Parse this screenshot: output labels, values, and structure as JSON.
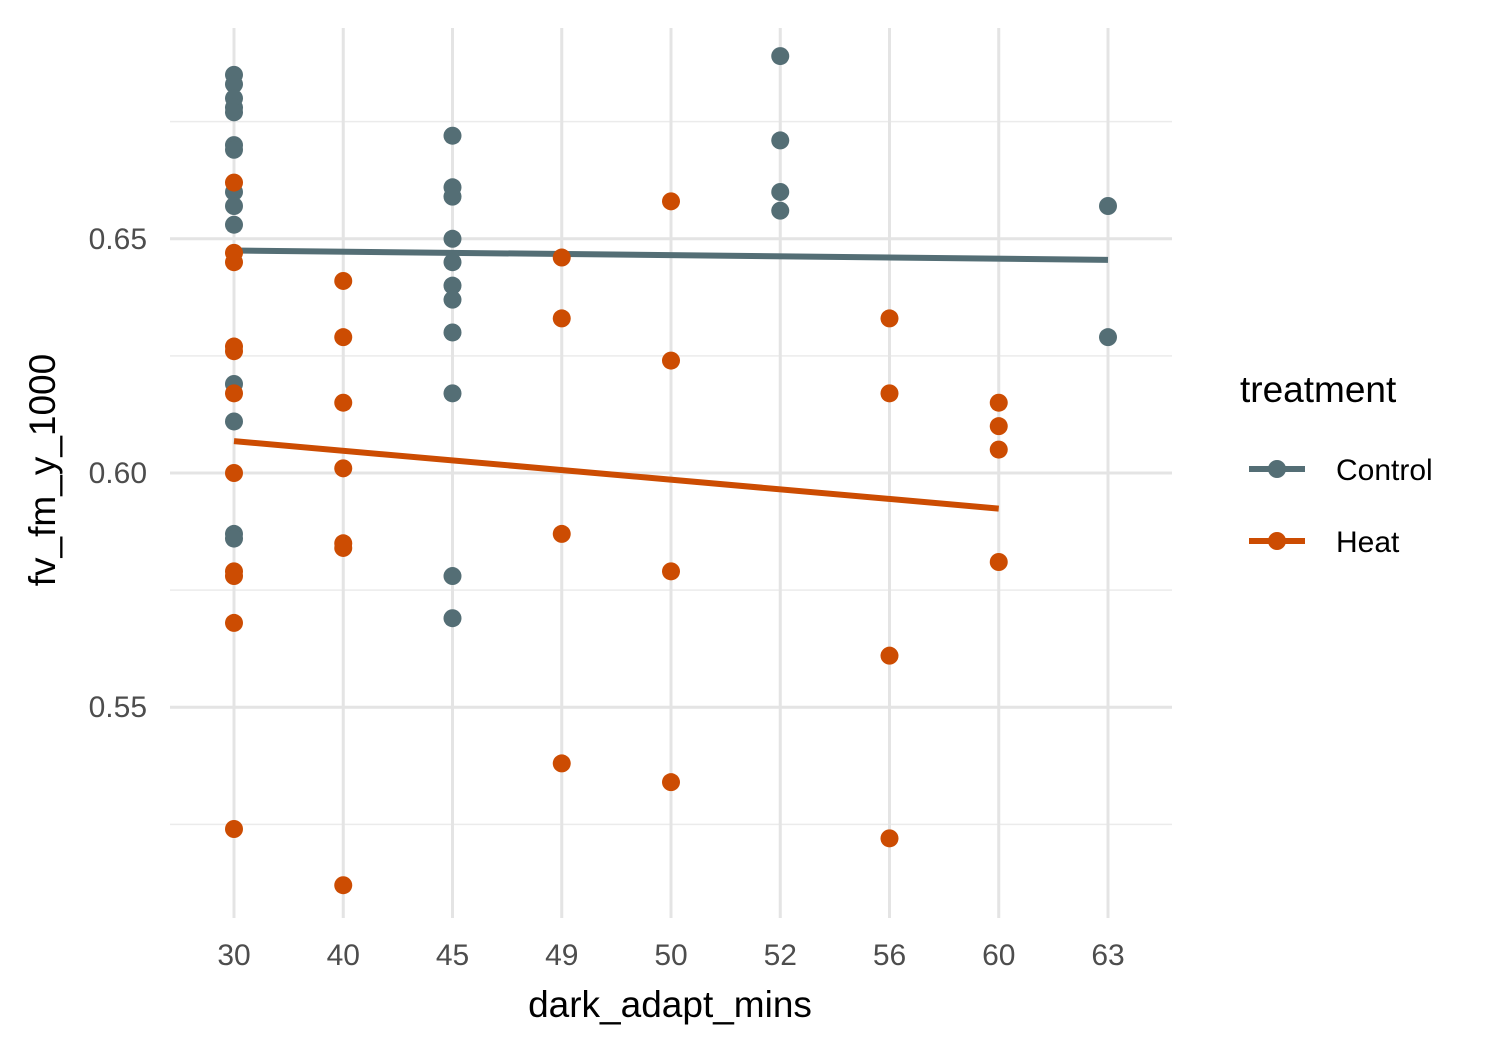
{
  "chart_data": {
    "type": "scatter",
    "xlabel": "dark_adapt_mins",
    "ylabel": "fv_fm_y_1000",
    "x_categories": [
      "30",
      "40",
      "45",
      "49",
      "50",
      "52",
      "56",
      "60",
      "63"
    ],
    "y_ticks": [
      "0.55",
      "0.60",
      "0.65"
    ],
    "ylim": [
      0.505,
      0.695
    ],
    "grid": true,
    "legend": {
      "title": "treatment",
      "placement": "right"
    },
    "series": [
      {
        "name": "Control",
        "color": "#546e75",
        "points": [
          [
            "30",
            0.685
          ],
          [
            "30",
            0.683
          ],
          [
            "30",
            0.68
          ],
          [
            "30",
            0.678
          ],
          [
            "30",
            0.677
          ],
          [
            "30",
            0.67
          ],
          [
            "30",
            0.669
          ],
          [
            "30",
            0.66
          ],
          [
            "30",
            0.657
          ],
          [
            "30",
            0.653
          ],
          [
            "30",
            0.619
          ],
          [
            "30",
            0.611
          ],
          [
            "30",
            0.587
          ],
          [
            "30",
            0.586
          ],
          [
            "45",
            0.672
          ],
          [
            "45",
            0.661
          ],
          [
            "45",
            0.659
          ],
          [
            "45",
            0.65
          ],
          [
            "45",
            0.645
          ],
          [
            "45",
            0.64
          ],
          [
            "45",
            0.637
          ],
          [
            "45",
            0.63
          ],
          [
            "45",
            0.617
          ],
          [
            "45",
            0.578
          ],
          [
            "45",
            0.569
          ],
          [
            "52",
            0.689
          ],
          [
            "52",
            0.671
          ],
          [
            "52",
            0.66
          ],
          [
            "52",
            0.656
          ],
          [
            "63",
            0.657
          ],
          [
            "63",
            0.629
          ]
        ],
        "trend": {
          "from": [
            "30",
            0.6475
          ],
          "to": [
            "63",
            0.6455
          ]
        }
      },
      {
        "name": "Heat",
        "color": "#cc4c02",
        "points": [
          [
            "30",
            0.662
          ],
          [
            "30",
            0.647
          ],
          [
            "30",
            0.645
          ],
          [
            "30",
            0.627
          ],
          [
            "30",
            0.626
          ],
          [
            "30",
            0.617
          ],
          [
            "30",
            0.6
          ],
          [
            "30",
            0.579
          ],
          [
            "30",
            0.578
          ],
          [
            "30",
            0.568
          ],
          [
            "30",
            0.524
          ],
          [
            "40",
            0.641
          ],
          [
            "40",
            0.629
          ],
          [
            "40",
            0.615
          ],
          [
            "40",
            0.601
          ],
          [
            "40",
            0.585
          ],
          [
            "40",
            0.584
          ],
          [
            "40",
            0.512
          ],
          [
            "49",
            0.646
          ],
          [
            "49",
            0.633
          ],
          [
            "49",
            0.587
          ],
          [
            "49",
            0.538
          ],
          [
            "50",
            0.658
          ],
          [
            "50",
            0.624
          ],
          [
            "50",
            0.579
          ],
          [
            "50",
            0.534
          ],
          [
            "56",
            0.633
          ],
          [
            "56",
            0.617
          ],
          [
            "56",
            0.561
          ],
          [
            "56",
            0.522
          ],
          [
            "60",
            0.615
          ],
          [
            "60",
            0.61
          ],
          [
            "60",
            0.605
          ],
          [
            "60",
            0.581
          ]
        ],
        "trend": {
          "from": [
            "30",
            0.6068
          ],
          "to": [
            "60",
            0.5924
          ]
        }
      }
    ]
  }
}
